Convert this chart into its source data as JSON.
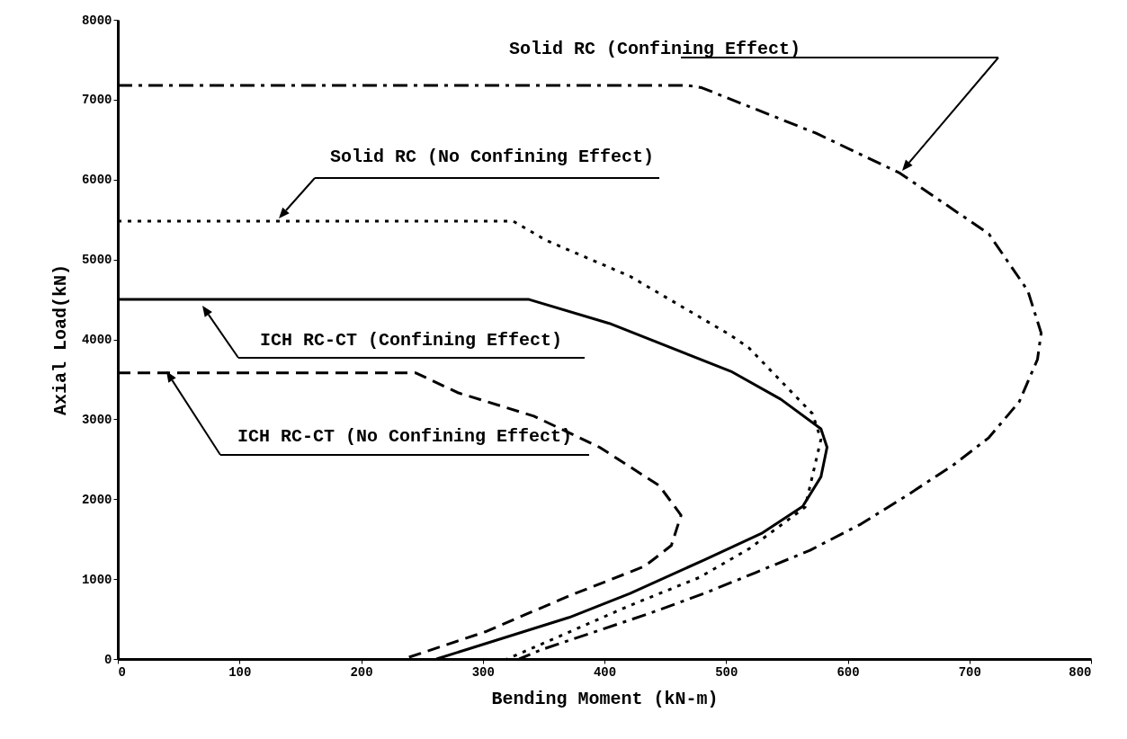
{
  "chart_data": {
    "type": "line",
    "xlabel": "Bending Moment (kN-m)",
    "ylabel": "Axial Load(kN)",
    "xlim": [
      0,
      800
    ],
    "xticks": [
      0,
      100,
      200,
      300,
      400,
      500,
      600,
      700,
      800
    ],
    "ylim": [
      0,
      8000
    ],
    "yticks": [
      0,
      1000,
      2000,
      3000,
      4000,
      5000,
      6000,
      7000,
      8000
    ],
    "grid": false,
    "legend": false,
    "marker": "none",
    "series": [
      {
        "color": "#000000",
        "line_style": "solid",
        "x": [
          0,
          338,
          404,
          504,
          545,
          578,
          583,
          578,
          563,
          529,
          482,
          421,
          371,
          262
        ],
        "values": [
          4500,
          4500,
          4200,
          3600,
          3250,
          2880,
          2650,
          2280,
          1910,
          1570,
          1240,
          820,
          520,
          0
        ]
      },
      {
        "color": "#000000",
        "line_style": "dashed",
        "x": [
          0,
          245,
          280,
          342,
          396,
          445,
          463,
          455,
          433,
          371,
          302,
          235
        ],
        "values": [
          3580,
          3580,
          3330,
          3040,
          2650,
          2170,
          1800,
          1420,
          1160,
          790,
          340,
          0
        ]
      },
      {
        "color": "#000000",
        "line_style": "dotted",
        "x": [
          0,
          325,
          352,
          421,
          504,
          519,
          571,
          578,
          565,
          519,
          478,
          421,
          376,
          320
        ],
        "values": [
          5480,
          5480,
          5240,
          4790,
          4050,
          3890,
          3070,
          2750,
          1900,
          1380,
          1020,
          670,
          370,
          0
        ]
      },
      {
        "color": "#000000",
        "line_style": "dashdot",
        "x": [
          0,
          468,
          480,
          574,
          643,
          716,
          748,
          759,
          756,
          741,
          716,
          687,
          650,
          611,
          569,
          524,
          482,
          435,
          347,
          330
        ],
        "values": [
          7180,
          7180,
          7150,
          6580,
          6080,
          5320,
          4610,
          4080,
          3750,
          3220,
          2770,
          2430,
          2060,
          1690,
          1360,
          1080,
          820,
          560,
          110,
          0
        ]
      }
    ],
    "annotations": [
      "Solid RC (Confining Effect)",
      "Solid RC (No Confining Effect)",
      "ICH RC-CT (Confining Effect)",
      "ICH RC-CT (No Confining Effect)"
    ]
  }
}
